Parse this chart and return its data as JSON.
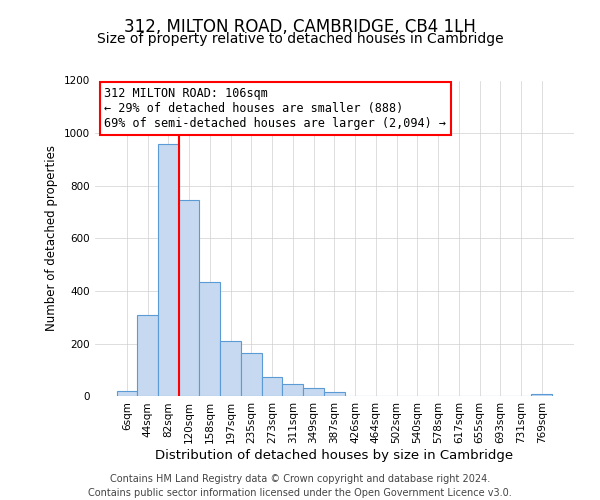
{
  "title": "312, MILTON ROAD, CAMBRIDGE, CB4 1LH",
  "subtitle": "Size of property relative to detached houses in Cambridge",
  "xlabel": "Distribution of detached houses by size in Cambridge",
  "ylabel": "Number of detached properties",
  "bin_labels": [
    "6sqm",
    "44sqm",
    "82sqm",
    "120sqm",
    "158sqm",
    "197sqm",
    "235sqm",
    "273sqm",
    "311sqm",
    "349sqm",
    "387sqm",
    "426sqm",
    "464sqm",
    "502sqm",
    "540sqm",
    "578sqm",
    "617sqm",
    "655sqm",
    "693sqm",
    "731sqm",
    "769sqm"
  ],
  "bar_heights": [
    20,
    310,
    960,
    745,
    435,
    210,
    165,
    75,
    48,
    33,
    18,
    0,
    0,
    0,
    0,
    0,
    0,
    0,
    0,
    0,
    8
  ],
  "bar_color": "#c6d9f0",
  "bar_edge_color": "#5b9bd5",
  "vline_x_index": 2.5,
  "vline_color": "red",
  "annotation_line1": "312 MILTON ROAD: 106sqm",
  "annotation_line2": "← 29% of detached houses are smaller (888)",
  "annotation_line3": "69% of semi-detached houses are larger (2,094) →",
  "annotation_box_color": "white",
  "annotation_box_edge_color": "red",
  "ylim": [
    0,
    1200
  ],
  "yticks": [
    0,
    200,
    400,
    600,
    800,
    1000,
    1200
  ],
  "footer_line1": "Contains HM Land Registry data © Crown copyright and database right 2024.",
  "footer_line2": "Contains public sector information licensed under the Open Government Licence v3.0.",
  "title_fontsize": 12,
  "subtitle_fontsize": 10,
  "xlabel_fontsize": 9.5,
  "ylabel_fontsize": 8.5,
  "annotation_fontsize": 8.5,
  "footer_fontsize": 7,
  "tick_fontsize": 7.5
}
